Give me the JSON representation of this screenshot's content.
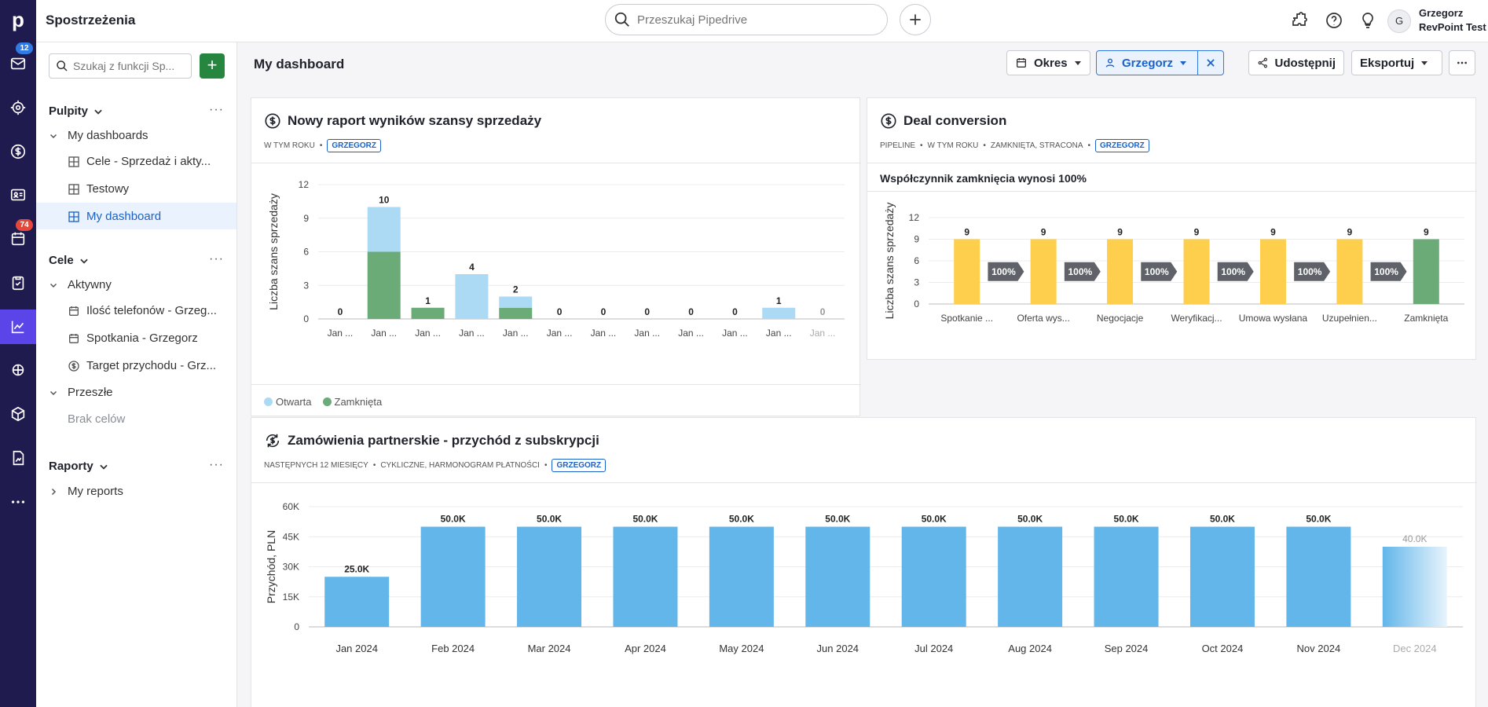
{
  "app": {
    "title": "Spostrzeżenia",
    "logo_letter": "p"
  },
  "rail": {
    "mail_badge": "12",
    "calendar_badge": "74"
  },
  "topbar": {
    "search_placeholder": "Przeszukaj Pipedrive",
    "user_initial": "G",
    "user_name": "Grzegorz",
    "company": "RevPoint Test"
  },
  "sidebar": {
    "search_placeholder": "Szukaj z funkcji Sp...",
    "sections": {
      "dashboards": {
        "label": "Pulpity",
        "group": "My dashboards",
        "items": [
          "Cele - Sprzedaż i akty...",
          "Testowy",
          "My dashboard"
        ]
      },
      "goals": {
        "label": "Cele",
        "active": "Aktywny",
        "items": [
          "Ilość telefonów - Grzeg...",
          "Spotkania - Grzegorz",
          "Target przychodu - Grz..."
        ],
        "past": "Przeszłe",
        "empty": "Brak celów"
      },
      "reports": {
        "label": "Raporty",
        "item": "My reports"
      }
    }
  },
  "header": {
    "title": "My dashboard",
    "period": "Okres",
    "user_filter": "Grzegorz",
    "share": "Udostępnij",
    "export": "Eksportuj"
  },
  "cards": {
    "c1": {
      "title": "Nowy raport wyników szansy sprzedaży",
      "meta": "W TYM ROKU",
      "tag": "GRZEGORZ",
      "legend_open": "Otwarta",
      "legend_closed": "Zamknięta"
    },
    "c2": {
      "title": "Deal conversion",
      "meta1": "PIPELINE",
      "meta2": "W TYM ROKU",
      "meta3": "ZAMKNIĘTA, STRACONA",
      "tag": "GRZEGORZ",
      "subtitle": "Współczynnik zamknięcia wynosi 100%"
    },
    "c3": {
      "title": "Zamówienia partnerskie - przychód z subskrypcji",
      "meta1": "NASTĘPNYCH 12 MIESIĘCY",
      "meta2": "CYKLICZNE, HARMONOGRAM PŁATNOŚCI",
      "tag": "GRZEGORZ"
    }
  },
  "chart_data": [
    {
      "type": "bar",
      "stacked": true,
      "ylabel": "Liczba szans sprzedaży",
      "ylim": [
        0,
        12
      ],
      "yticks": [
        0,
        3,
        6,
        9,
        12
      ],
      "categories": [
        "Jan ...",
        "Jan ...",
        "Jan ...",
        "Jan ...",
        "Jan ...",
        "Jan ...",
        "Jan ...",
        "Jan ...",
        "Jan ...",
        "Jan ...",
        "Jan ...",
        "Jan ..."
      ],
      "series": [
        {
          "name": "Zamknięta",
          "color": "#6bab78",
          "values": [
            0,
            6,
            1,
            0,
            1,
            0,
            0,
            0,
            0,
            0,
            0,
            0
          ]
        },
        {
          "name": "Otwarta",
          "color": "#acdaf4",
          "values": [
            0,
            4,
            0,
            4,
            1,
            0,
            0,
            0,
            0,
            0,
            1,
            0
          ]
        }
      ],
      "totals": [
        0,
        10,
        1,
        4,
        2,
        0,
        0,
        0,
        0,
        0,
        1,
        0
      ]
    },
    {
      "type": "bar",
      "ylabel": "Liczba szans sprzedaży",
      "ylim": [
        0,
        12
      ],
      "yticks": [
        0,
        3,
        6,
        9,
        12
      ],
      "categories": [
        "Spotkanie ...",
        "Oferta wys...",
        "Negocjacje",
        "Weryfikacj...",
        "Umowa wysłana",
        "Uzupełnien...",
        "Zamknięta"
      ],
      "values": [
        9,
        9,
        9,
        9,
        9,
        9,
        9
      ],
      "colors": [
        "#fecf4d",
        "#fecf4d",
        "#fecf4d",
        "#fecf4d",
        "#fecf4d",
        "#fecf4d",
        "#6bab78"
      ],
      "conversions": [
        "100%",
        "100%",
        "100%",
        "100%",
        "100%",
        "100%"
      ]
    },
    {
      "type": "bar",
      "ylabel": "Przychód, PLN",
      "ylim": [
        0,
        60000
      ],
      "yticks": [
        "0",
        "15K",
        "30K",
        "45K",
        "60K"
      ],
      "categories": [
        "Jan 2024",
        "Feb 2024",
        "Mar 2024",
        "Apr 2024",
        "May 2024",
        "Jun 2024",
        "Jul 2024",
        "Aug 2024",
        "Sep 2024",
        "Oct 2024",
        "Nov 2024",
        "Dec 2024"
      ],
      "values": [
        25000,
        50000,
        50000,
        50000,
        50000,
        50000,
        50000,
        50000,
        50000,
        50000,
        50000,
        40000
      ],
      "labels": [
        "25.0K",
        "50.0K",
        "50.0K",
        "50.0K",
        "50.0K",
        "50.0K",
        "50.0K",
        "50.0K",
        "50.0K",
        "50.0K",
        "50.0K",
        "40.0K"
      ],
      "color": "#62b6ea"
    }
  ]
}
